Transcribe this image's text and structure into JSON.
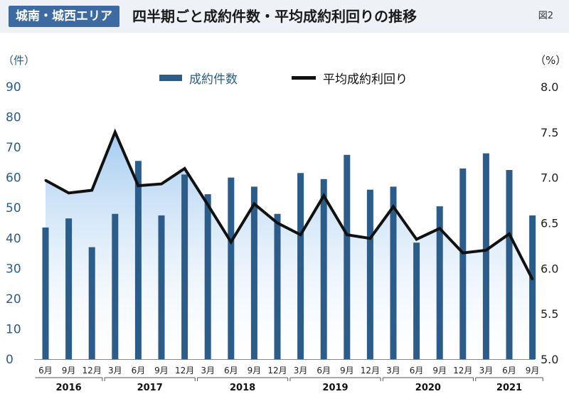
{
  "header": {
    "badge": "城南・城西エリア",
    "title": "四半期ごと成約件数・平均成約利回りの推移",
    "figure_label": "図2"
  },
  "colors": {
    "bar": "#2b5c8a",
    "line": "#111111",
    "area_top": "#9fc8f0",
    "area_bottom": "#ffffff",
    "left_axis": "#2b5c8a",
    "right_axis": "#222222",
    "badge_bg": "#3d6aa1"
  },
  "chart_data": {
    "type": "bar",
    "title": "四半期ごと成約件数・平均成約利回りの推移",
    "legend_position": "top-center",
    "grid": false,
    "y_left_label": "（件）",
    "y_right_label": "（%）",
    "y_left_lim": [
      0,
      90
    ],
    "y_left_ticks": [
      0,
      10,
      20,
      30,
      40,
      50,
      60,
      70,
      80,
      90
    ],
    "y_right_lim": [
      5.0,
      8.0
    ],
    "y_right_ticks": [
      "5.0",
      "5.5",
      "6.0",
      "6.5",
      "7.0",
      "7.5",
      "8.0"
    ],
    "categories": [
      "6月",
      "9月",
      "12月",
      "3月",
      "6月",
      "9月",
      "12月",
      "3月",
      "6月",
      "9月",
      "12月",
      "3月",
      "6月",
      "9月",
      "12月",
      "3月",
      "6月",
      "9月",
      "12月",
      "3月",
      "6月",
      "9月"
    ],
    "years": [
      {
        "label": "2016",
        "start": 0,
        "end": 2
      },
      {
        "label": "2017",
        "start": 3,
        "end": 6
      },
      {
        "label": "2018",
        "start": 7,
        "end": 10
      },
      {
        "label": "2019",
        "start": 11,
        "end": 14
      },
      {
        "label": "2020",
        "start": 15,
        "end": 18
      },
      {
        "label": "2021",
        "start": 19,
        "end": 21
      }
    ],
    "series": [
      {
        "name": "成約件数",
        "type": "bar",
        "axis": "left",
        "values": [
          43.5,
          46.5,
          37,
          48,
          65.5,
          47.5,
          61,
          54.5,
          60,
          57,
          48,
          61.5,
          59.5,
          67.5,
          56,
          57,
          38.5,
          50.5,
          63,
          68,
          62.5,
          47.5
        ]
      },
      {
        "name": "平均成約利回り",
        "type": "line",
        "axis": "right",
        "values": [
          6.97,
          6.83,
          6.86,
          7.5,
          6.91,
          6.93,
          7.1,
          6.7,
          6.29,
          6.71,
          6.5,
          6.37,
          6.8,
          6.37,
          6.33,
          6.68,
          6.32,
          6.44,
          6.17,
          6.2,
          6.38,
          5.88
        ]
      }
    ]
  }
}
